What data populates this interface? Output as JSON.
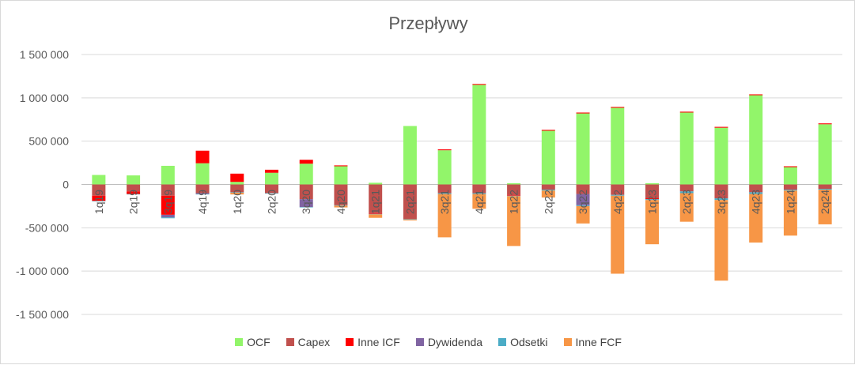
{
  "chart_data": {
    "type": "bar",
    "stacked": true,
    "title": "Przepływy",
    "ylim": [
      -1500000,
      1500000
    ],
    "yticks": [
      1500000,
      1000000,
      500000,
      0,
      -500000,
      -1000000,
      -1500000
    ],
    "ytick_labels": [
      "1 500 000",
      "1 000 000",
      "500 000",
      "0",
      "-500 000",
      "-1 000 000",
      "-1 500 000"
    ],
    "grid": true,
    "legend_position": "bottom",
    "categories": [
      "1q19",
      "2q19",
      "3q19",
      "4q19",
      "1q20",
      "2q20",
      "3q20",
      "4q20",
      "1q21",
      "2q21",
      "3q21",
      "4q21",
      "1q22",
      "2q22",
      "3q22",
      "4q22",
      "1q23",
      "2q23",
      "3q23",
      "4q23",
      "1q24",
      "2q24"
    ],
    "category_labels": [
      "1q19",
      "2q19",
      "3q19",
      "4q19",
      "1q20",
      "2q20",
      "3q20",
      "4q20",
      "1q21",
      "2q21",
      "3q21",
      "4q21",
      "1q22",
      "2q22",
      "3q22",
      "4q22",
      "1q23",
      "2q23",
      "3q23",
      "4q23",
      "1q24",
      "2q24"
    ],
    "series": [
      {
        "name": "OCF",
        "color": "#92f56a",
        "values": [
          110000,
          105000,
          215000,
          245000,
          30000,
          135000,
          240000,
          210000,
          20000,
          675000,
          395000,
          1150000,
          15000,
          620000,
          820000,
          885000,
          15000,
          830000,
          655000,
          1030000,
          200000,
          695000
        ]
      },
      {
        "name": "Capex",
        "color": "#c0504d",
        "values": [
          -130000,
          -80000,
          -130000,
          -100000,
          -90000,
          -100000,
          -170000,
          -240000,
          -330000,
          -400000,
          -100000,
          -100000,
          -120000,
          -60000,
          -110000,
          -120000,
          -160000,
          -80000,
          -160000,
          -90000,
          -60000,
          -50000
        ]
      },
      {
        "name": "Inne ICF",
        "color": "#ff0000",
        "values": [
          -60000,
          -30000,
          -220000,
          145000,
          95000,
          35000,
          45000,
          10000,
          -10000,
          0,
          10000,
          10000,
          -10000,
          10000,
          10000,
          10000,
          -10000,
          10000,
          10000,
          10000,
          10000,
          10000
        ]
      },
      {
        "name": "Dywidenda",
        "color": "#8064a2",
        "values": [
          0,
          0,
          -30000,
          -10000,
          0,
          0,
          -90000,
          0,
          0,
          0,
          0,
          0,
          0,
          0,
          -130000,
          0,
          0,
          0,
          0,
          0,
          0,
          0
        ]
      },
      {
        "name": "Odsetki",
        "color": "#4bacc6",
        "values": [
          -5000,
          -5000,
          -10000,
          -5000,
          -5000,
          -5000,
          -5000,
          -5000,
          -5000,
          -5000,
          -10000,
          -10000,
          -5000,
          -10000,
          -10000,
          -10000,
          -10000,
          -20000,
          -20000,
          -20000,
          -10000,
          -10000
        ]
      },
      {
        "name": "Inne FCF",
        "color": "#f79646",
        "values": [
          0,
          0,
          0,
          0,
          -20000,
          0,
          0,
          -20000,
          -40000,
          -10000,
          -500000,
          -170000,
          -575000,
          -80000,
          -200000,
          -900000,
          -510000,
          -330000,
          -930000,
          -560000,
          -520000,
          -400000
        ]
      }
    ]
  }
}
